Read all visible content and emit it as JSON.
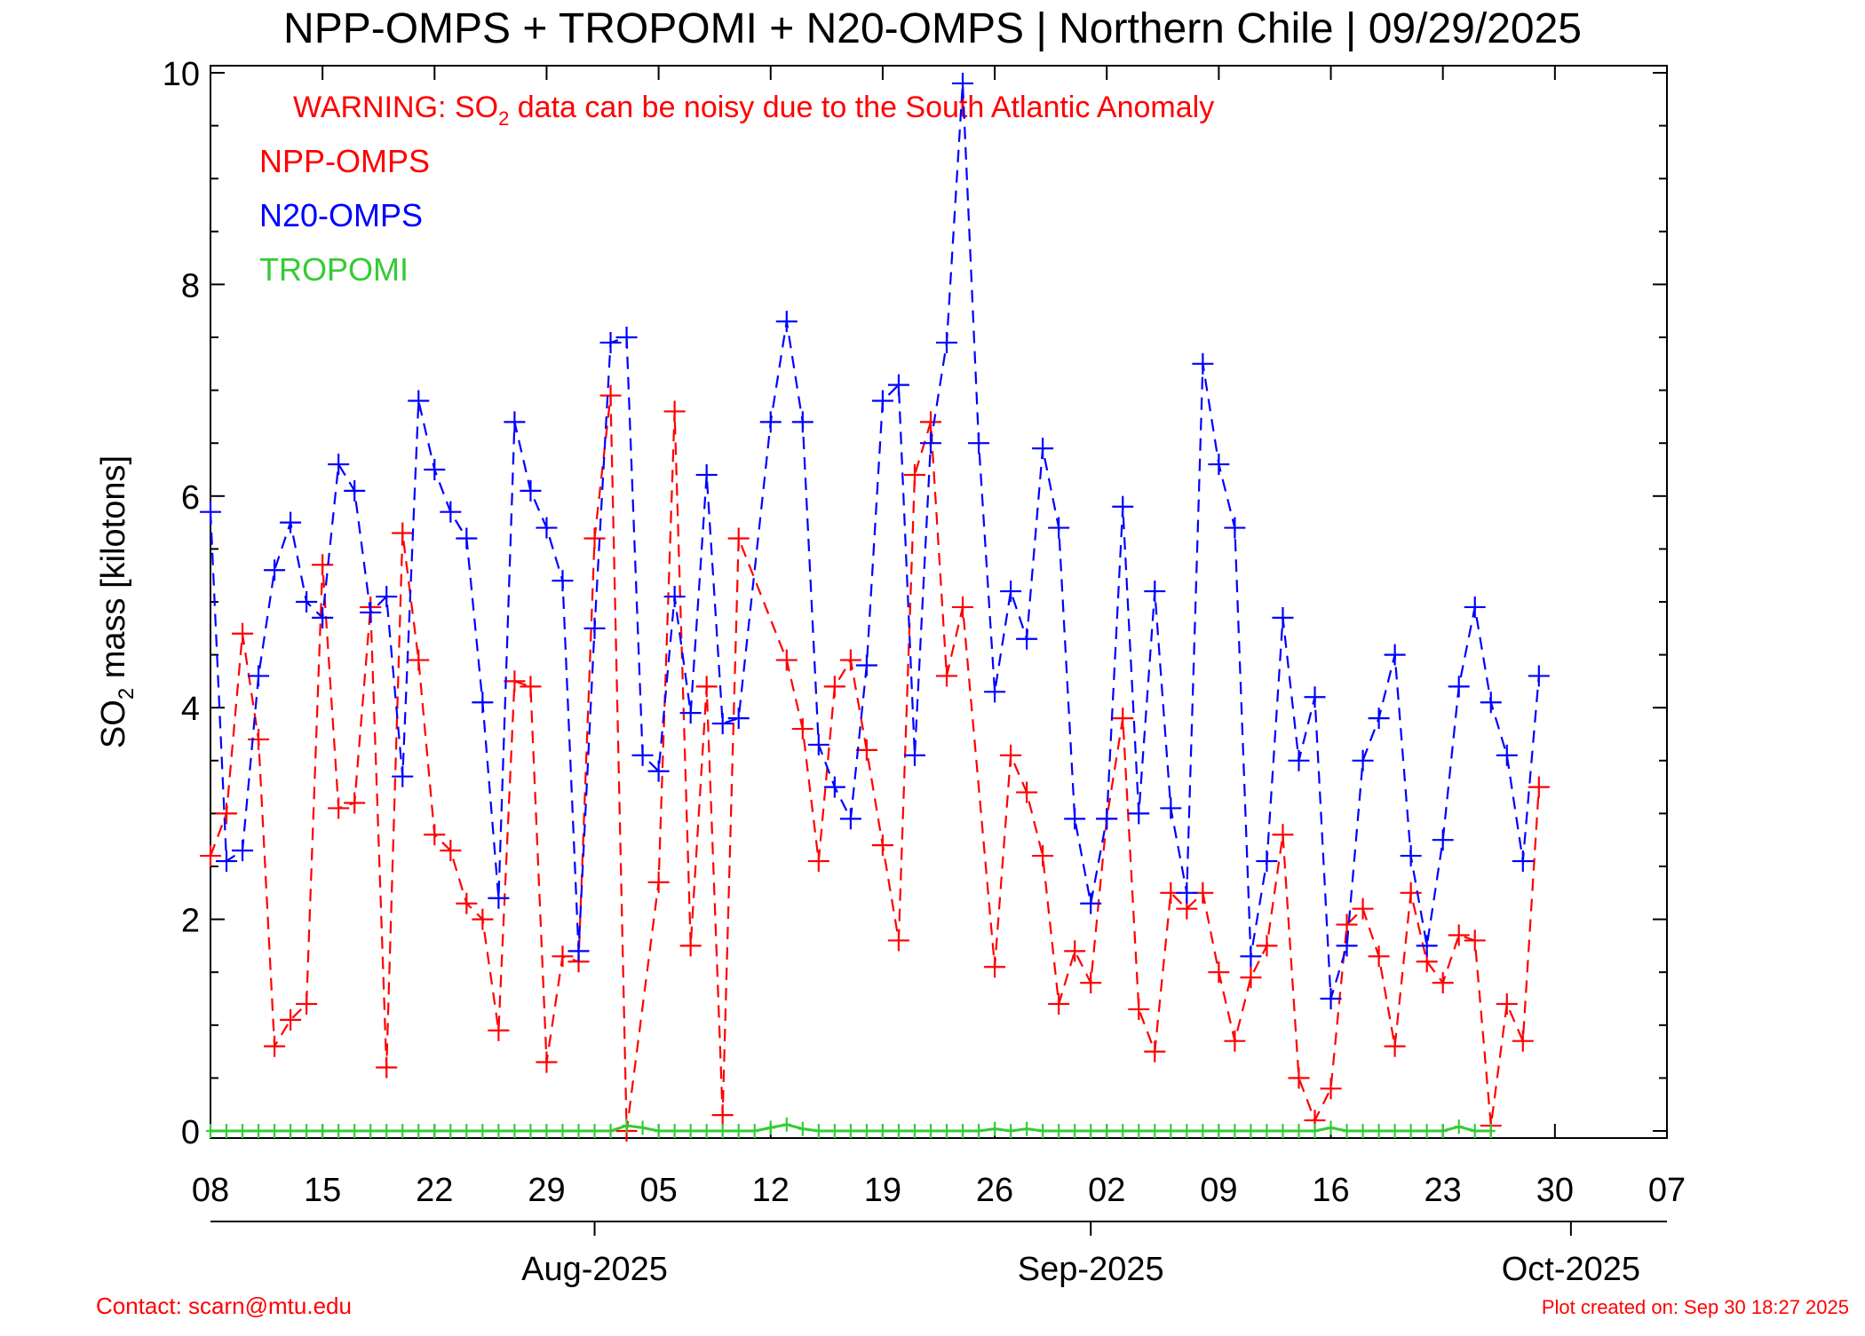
{
  "chart_data": {
    "type": "line",
    "title": "NPP-OMPS + TROPOMI + N20-OMPS | Northern Chile | 09/29/2025",
    "warning": {
      "prefix": "WARNING: SO",
      "subscript": "2",
      "suffix": " data can be noisy due to the South Atlantic Anomaly"
    },
    "ylabel": {
      "prefix": "SO",
      "subscript": "2",
      "suffix": " mass [kilotons]"
    },
    "xlabel": "",
    "ylim": [
      0,
      10
    ],
    "yticks": [
      0,
      2,
      4,
      6,
      8,
      10
    ],
    "y_minor_step": 0.5,
    "x_axis": {
      "range": [
        "2025-07-08",
        "2025-10-07"
      ],
      "day_ticks": [
        {
          "date": "2025-07-08",
          "label": "08"
        },
        {
          "date": "2025-07-15",
          "label": "15"
        },
        {
          "date": "2025-07-22",
          "label": "22"
        },
        {
          "date": "2025-07-29",
          "label": "29"
        },
        {
          "date": "2025-08-05",
          "label": "05"
        },
        {
          "date": "2025-08-12",
          "label": "12"
        },
        {
          "date": "2025-08-19",
          "label": "19"
        },
        {
          "date": "2025-08-26",
          "label": "26"
        },
        {
          "date": "2025-09-02",
          "label": "02"
        },
        {
          "date": "2025-09-09",
          "label": "09"
        },
        {
          "date": "2025-09-16",
          "label": "16"
        },
        {
          "date": "2025-09-23",
          "label": "23"
        },
        {
          "date": "2025-09-30",
          "label": "30"
        },
        {
          "date": "2025-10-07",
          "label": "07"
        }
      ],
      "month_ticks": [
        {
          "date": "2025-08-01",
          "label": "Aug-2025"
        },
        {
          "date": "2025-09-01",
          "label": "Sep-2025"
        },
        {
          "date": "2025-10-01",
          "label": "Oct-2025"
        }
      ]
    },
    "series": [
      {
        "name": "NPP-OMPS",
        "color": "#ff0000",
        "points": [
          [
            "2025-07-08",
            2.6
          ],
          [
            "2025-07-09",
            3.0
          ],
          [
            "2025-07-10",
            4.7
          ],
          [
            "2025-07-11",
            3.7
          ],
          [
            "2025-07-12",
            0.8
          ],
          [
            "2025-07-13",
            1.05
          ],
          [
            "2025-07-14",
            1.2
          ],
          [
            "2025-07-15",
            5.35
          ],
          [
            "2025-07-16",
            3.05
          ],
          [
            "2025-07-17",
            3.1
          ],
          [
            "2025-07-18",
            4.95
          ],
          [
            "2025-07-19",
            0.6
          ],
          [
            "2025-07-20",
            5.65
          ],
          [
            "2025-07-21",
            4.45
          ],
          [
            "2025-07-22",
            2.8
          ],
          [
            "2025-07-23",
            2.65
          ],
          [
            "2025-07-24",
            2.15
          ],
          [
            "2025-07-25",
            2.0
          ],
          [
            "2025-07-26",
            0.95
          ],
          [
            "2025-07-27",
            4.25
          ],
          [
            "2025-07-28",
            4.2
          ],
          [
            "2025-07-29",
            0.65
          ],
          [
            "2025-07-30",
            1.65
          ],
          [
            "2025-07-31",
            1.6
          ],
          [
            "2025-08-01",
            5.6
          ],
          [
            "2025-08-02",
            6.95
          ],
          [
            "2025-08-03",
            0.0
          ],
          [
            "2025-08-05",
            2.35
          ],
          [
            "2025-08-06",
            6.8
          ],
          [
            "2025-08-07",
            1.75
          ],
          [
            "2025-08-08",
            4.2
          ],
          [
            "2025-08-09",
            0.15
          ],
          [
            "2025-08-10",
            5.6
          ],
          [
            "2025-08-13",
            4.45
          ],
          [
            "2025-08-14",
            3.8
          ],
          [
            "2025-08-15",
            2.55
          ],
          [
            "2025-08-16",
            4.2
          ],
          [
            "2025-08-17",
            4.45
          ],
          [
            "2025-08-18",
            3.6
          ],
          [
            "2025-08-19",
            2.7
          ],
          [
            "2025-08-20",
            1.8
          ],
          [
            "2025-08-21",
            6.2
          ],
          [
            "2025-08-22",
            6.7
          ],
          [
            "2025-08-23",
            4.3
          ],
          [
            "2025-08-24",
            4.95
          ],
          [
            "2025-08-26",
            1.55
          ],
          [
            "2025-08-27",
            3.55
          ],
          [
            "2025-08-28",
            3.2
          ],
          [
            "2025-08-29",
            2.6
          ],
          [
            "2025-08-30",
            1.2
          ],
          [
            "2025-08-31",
            1.7
          ],
          [
            "2025-09-01",
            1.4
          ],
          [
            "2025-09-02",
            2.95
          ],
          [
            "2025-09-03",
            3.9
          ],
          [
            "2025-09-04",
            1.15
          ],
          [
            "2025-09-05",
            0.75
          ],
          [
            "2025-09-06",
            2.25
          ],
          [
            "2025-09-07",
            2.1
          ],
          [
            "2025-09-08",
            2.25
          ],
          [
            "2025-09-09",
            1.5
          ],
          [
            "2025-09-10",
            0.85
          ],
          [
            "2025-09-11",
            1.45
          ],
          [
            "2025-09-12",
            1.75
          ],
          [
            "2025-09-13",
            2.8
          ],
          [
            "2025-09-14",
            0.5
          ],
          [
            "2025-09-15",
            0.1
          ],
          [
            "2025-09-16",
            0.4
          ],
          [
            "2025-09-17",
            1.95
          ],
          [
            "2025-09-18",
            2.1
          ],
          [
            "2025-09-19",
            1.65
          ],
          [
            "2025-09-20",
            0.8
          ],
          [
            "2025-09-21",
            2.25
          ],
          [
            "2025-09-22",
            1.6
          ],
          [
            "2025-09-23",
            1.4
          ],
          [
            "2025-09-24",
            1.85
          ],
          [
            "2025-09-25",
            1.8
          ],
          [
            "2025-09-26",
            0.05
          ],
          [
            "2025-09-27",
            1.2
          ],
          [
            "2025-09-28",
            0.85
          ],
          [
            "2025-09-29",
            3.25
          ]
        ]
      },
      {
        "name": "N20-OMPS",
        "color": "#0000ff",
        "points": [
          [
            "2025-07-08",
            5.85
          ],
          [
            "2025-07-09",
            2.55
          ],
          [
            "2025-07-10",
            2.65
          ],
          [
            "2025-07-11",
            4.3
          ],
          [
            "2025-07-12",
            5.3
          ],
          [
            "2025-07-13",
            5.75
          ],
          [
            "2025-07-14",
            5.0
          ],
          [
            "2025-07-15",
            4.85
          ],
          [
            "2025-07-16",
            6.3
          ],
          [
            "2025-07-17",
            6.05
          ],
          [
            "2025-07-18",
            4.9
          ],
          [
            "2025-07-19",
            5.05
          ],
          [
            "2025-07-20",
            3.35
          ],
          [
            "2025-07-21",
            6.9
          ],
          [
            "2025-07-22",
            6.25
          ],
          [
            "2025-07-23",
            5.85
          ],
          [
            "2025-07-24",
            5.6
          ],
          [
            "2025-07-25",
            4.05
          ],
          [
            "2025-07-26",
            2.2
          ],
          [
            "2025-07-27",
            6.7
          ],
          [
            "2025-07-28",
            6.05
          ],
          [
            "2025-07-29",
            5.7
          ],
          [
            "2025-07-30",
            5.2
          ],
          [
            "2025-07-31",
            1.7
          ],
          [
            "2025-08-01",
            4.75
          ],
          [
            "2025-08-02",
            7.45
          ],
          [
            "2025-08-03",
            7.5
          ],
          [
            "2025-08-04",
            3.55
          ],
          [
            "2025-08-05",
            3.4
          ],
          [
            "2025-08-06",
            5.05
          ],
          [
            "2025-08-07",
            3.95
          ],
          [
            "2025-08-08",
            6.2
          ],
          [
            "2025-08-09",
            3.85
          ],
          [
            "2025-08-10",
            3.9
          ],
          [
            "2025-08-12",
            6.7
          ],
          [
            "2025-08-13",
            7.65
          ],
          [
            "2025-08-14",
            6.7
          ],
          [
            "2025-08-15",
            3.65
          ],
          [
            "2025-08-16",
            3.25
          ],
          [
            "2025-08-17",
            2.95
          ],
          [
            "2025-08-18",
            4.4
          ],
          [
            "2025-08-19",
            6.9
          ],
          [
            "2025-08-20",
            7.05
          ],
          [
            "2025-08-21",
            3.55
          ],
          [
            "2025-08-22",
            6.5
          ],
          [
            "2025-08-23",
            7.45
          ],
          [
            "2025-08-24",
            9.9
          ],
          [
            "2025-08-25",
            6.5
          ],
          [
            "2025-08-26",
            4.15
          ],
          [
            "2025-08-27",
            5.1
          ],
          [
            "2025-08-28",
            4.65
          ],
          [
            "2025-08-29",
            6.45
          ],
          [
            "2025-08-30",
            5.7
          ],
          [
            "2025-08-31",
            2.95
          ],
          [
            "2025-09-01",
            2.15
          ],
          [
            "2025-09-02",
            2.95
          ],
          [
            "2025-09-03",
            5.9
          ],
          [
            "2025-09-04",
            3.0
          ],
          [
            "2025-09-05",
            5.1
          ],
          [
            "2025-09-06",
            3.05
          ],
          [
            "2025-09-07",
            2.25
          ],
          [
            "2025-09-08",
            7.25
          ],
          [
            "2025-09-09",
            6.3
          ],
          [
            "2025-09-10",
            5.7
          ],
          [
            "2025-09-11",
            1.65
          ],
          [
            "2025-09-12",
            2.55
          ],
          [
            "2025-09-13",
            4.85
          ],
          [
            "2025-09-14",
            3.5
          ],
          [
            "2025-09-15",
            4.1
          ],
          [
            "2025-09-16",
            1.25
          ],
          [
            "2025-09-17",
            1.75
          ],
          [
            "2025-09-18",
            3.5
          ],
          [
            "2025-09-19",
            3.9
          ],
          [
            "2025-09-20",
            4.5
          ],
          [
            "2025-09-21",
            2.6
          ],
          [
            "2025-09-22",
            1.75
          ],
          [
            "2025-09-23",
            2.75
          ],
          [
            "2025-09-24",
            4.2
          ],
          [
            "2025-09-25",
            4.95
          ],
          [
            "2025-09-26",
            4.05
          ],
          [
            "2025-09-27",
            3.55
          ],
          [
            "2025-09-28",
            2.55
          ],
          [
            "2025-09-29",
            4.3
          ]
        ]
      },
      {
        "name": "TROPOMI",
        "color": "#33cc33",
        "points": [
          [
            "2025-07-08",
            0.0
          ],
          [
            "2025-07-09",
            0.0
          ],
          [
            "2025-07-10",
            0.0
          ],
          [
            "2025-07-11",
            0.0
          ],
          [
            "2025-07-12",
            0.0
          ],
          [
            "2025-07-13",
            0.0
          ],
          [
            "2025-07-14",
            0.0
          ],
          [
            "2025-07-15",
            0.0
          ],
          [
            "2025-07-16",
            0.0
          ],
          [
            "2025-07-17",
            0.0
          ],
          [
            "2025-07-18",
            0.0
          ],
          [
            "2025-07-19",
            0.0
          ],
          [
            "2025-07-20",
            0.0
          ],
          [
            "2025-07-21",
            0.0
          ],
          [
            "2025-07-22",
            0.0
          ],
          [
            "2025-07-23",
            0.0
          ],
          [
            "2025-07-24",
            0.0
          ],
          [
            "2025-07-25",
            0.0
          ],
          [
            "2025-07-26",
            0.0
          ],
          [
            "2025-07-27",
            0.0
          ],
          [
            "2025-07-28",
            0.0
          ],
          [
            "2025-07-29",
            0.0
          ],
          [
            "2025-07-30",
            0.0
          ],
          [
            "2025-07-31",
            0.0
          ],
          [
            "2025-08-01",
            0.0
          ],
          [
            "2025-08-02",
            0.0
          ],
          [
            "2025-08-03",
            0.05
          ],
          [
            "2025-08-04",
            0.03
          ],
          [
            "2025-08-05",
            0.0
          ],
          [
            "2025-08-06",
            0.0
          ],
          [
            "2025-08-07",
            0.0
          ],
          [
            "2025-08-08",
            0.0
          ],
          [
            "2025-08-09",
            0.0
          ],
          [
            "2025-08-10",
            0.0
          ],
          [
            "2025-08-11",
            0.0
          ],
          [
            "2025-08-12",
            0.03
          ],
          [
            "2025-08-13",
            0.06
          ],
          [
            "2025-08-14",
            0.02
          ],
          [
            "2025-08-15",
            0.0
          ],
          [
            "2025-08-16",
            0.0
          ],
          [
            "2025-08-17",
            0.0
          ],
          [
            "2025-08-18",
            0.0
          ],
          [
            "2025-08-19",
            0.0
          ],
          [
            "2025-08-20",
            0.0
          ],
          [
            "2025-08-21",
            0.0
          ],
          [
            "2025-08-22",
            0.0
          ],
          [
            "2025-08-23",
            0.0
          ],
          [
            "2025-08-24",
            0.0
          ],
          [
            "2025-08-25",
            0.0
          ],
          [
            "2025-08-26",
            0.02
          ],
          [
            "2025-08-27",
            0.0
          ],
          [
            "2025-08-28",
            0.02
          ],
          [
            "2025-08-29",
            0.0
          ],
          [
            "2025-08-30",
            0.0
          ],
          [
            "2025-08-31",
            0.0
          ],
          [
            "2025-09-01",
            0.0
          ],
          [
            "2025-09-02",
            0.0
          ],
          [
            "2025-09-03",
            0.0
          ],
          [
            "2025-09-04",
            0.0
          ],
          [
            "2025-09-05",
            0.0
          ],
          [
            "2025-09-06",
            0.0
          ],
          [
            "2025-09-07",
            0.0
          ],
          [
            "2025-09-08",
            0.0
          ],
          [
            "2025-09-09",
            0.0
          ],
          [
            "2025-09-10",
            0.0
          ],
          [
            "2025-09-11",
            0.0
          ],
          [
            "2025-09-12",
            0.0
          ],
          [
            "2025-09-13",
            0.0
          ],
          [
            "2025-09-14",
            0.0
          ],
          [
            "2025-09-15",
            0.0
          ],
          [
            "2025-09-16",
            0.03
          ],
          [
            "2025-09-17",
            0.0
          ],
          [
            "2025-09-18",
            0.0
          ],
          [
            "2025-09-19",
            0.0
          ],
          [
            "2025-09-20",
            0.0
          ],
          [
            "2025-09-21",
            0.0
          ],
          [
            "2025-09-22",
            0.0
          ],
          [
            "2025-09-23",
            0.0
          ],
          [
            "2025-09-24",
            0.04
          ],
          [
            "2025-09-25",
            0.0
          ],
          [
            "2025-09-26",
            0.0
          ]
        ]
      }
    ],
    "legend": {
      "placement": "top-left"
    },
    "grid": false
  },
  "footer": {
    "contact": "Contact: scarn@mtu.edu",
    "created": "Plot created on: Sep 30 18:27 2025"
  },
  "colors": {
    "warning": "#ff0000",
    "axis": "#000000"
  }
}
